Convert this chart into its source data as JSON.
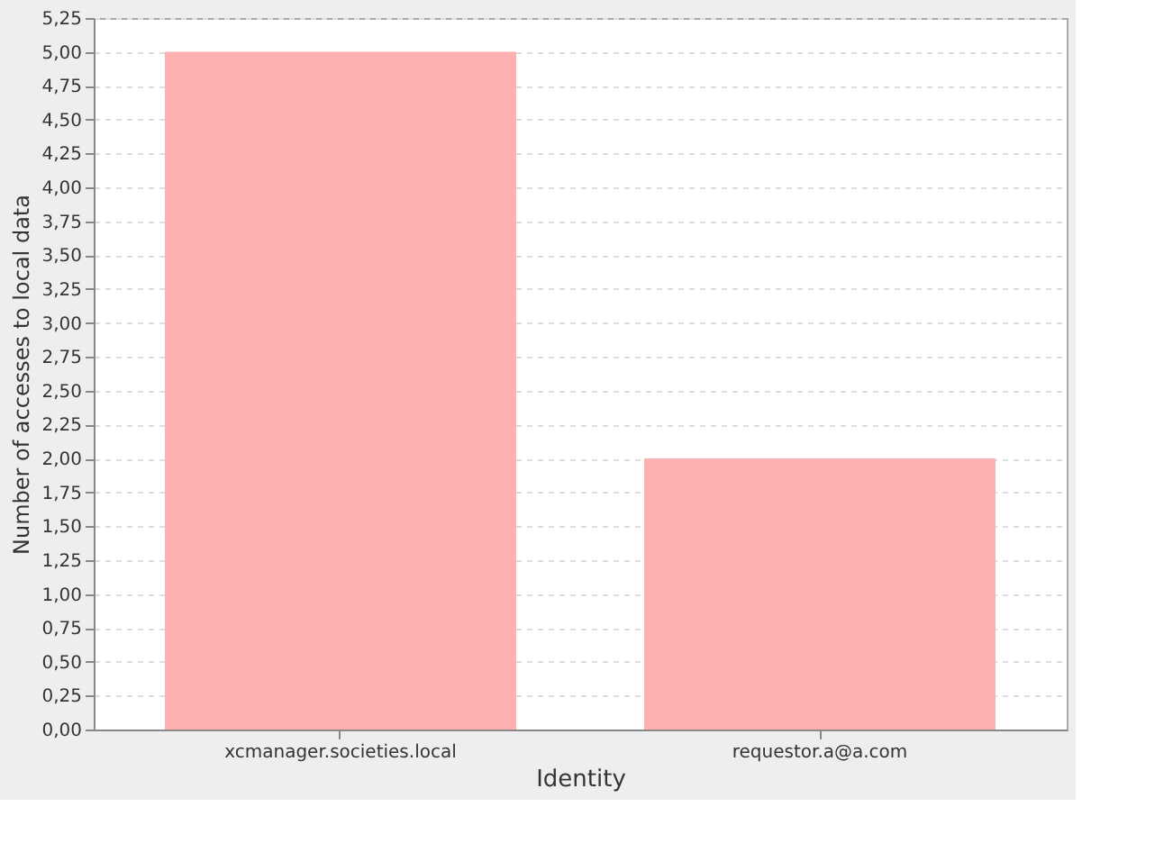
{
  "chart_data": {
    "type": "bar",
    "xlabel": "Identity",
    "ylabel": "Number of accesses to local data",
    "categories": [
      "xcmanager.societies.local",
      "requestor.a@a.com"
    ],
    "values": [
      5.0,
      2.0
    ],
    "color": "#ffb0b0",
    "ylim": [
      0,
      5.25
    ],
    "yticks": [
      {
        "value": 0,
        "label": "0,00"
      },
      {
        "value": 0.25,
        "label": "0,25"
      },
      {
        "value": 0.5,
        "label": "0,50"
      },
      {
        "value": 0.75,
        "label": "0,75"
      },
      {
        "value": 1,
        "label": "1,00"
      },
      {
        "value": 1.25,
        "label": "1,25"
      },
      {
        "value": 1.5,
        "label": "1,50"
      },
      {
        "value": 1.75,
        "label": "1,75"
      },
      {
        "value": 2,
        "label": "2,00"
      },
      {
        "value": 2.25,
        "label": "2,25"
      },
      {
        "value": 2.5,
        "label": "2,50"
      },
      {
        "value": 2.75,
        "label": "2,75"
      },
      {
        "value": 3,
        "label": "3,00"
      },
      {
        "value": 3.25,
        "label": "3,25"
      },
      {
        "value": 3.5,
        "label": "3,50"
      },
      {
        "value": 3.75,
        "label": "3,75"
      },
      {
        "value": 4,
        "label": "4,00"
      },
      {
        "value": 4.25,
        "label": "4,25"
      },
      {
        "value": 4.5,
        "label": "4,50"
      },
      {
        "value": 4.75,
        "label": "4,75"
      },
      {
        "value": 5,
        "label": "5,00"
      },
      {
        "value": 5.25,
        "label": "5,25"
      }
    ],
    "grid": "y"
  }
}
